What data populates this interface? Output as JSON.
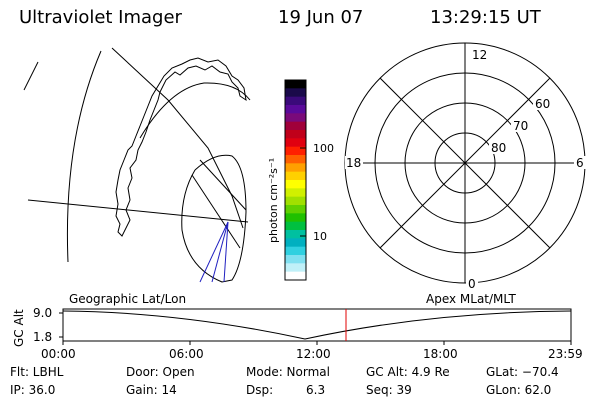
{
  "header": {
    "title": "Ultraviolet Imager",
    "date": "19 Jun 07",
    "time": "13:29:15 UT"
  },
  "colorbar": {
    "unit": "photon cm⁻²s⁻¹",
    "tick_labels": [
      "100",
      "10"
    ],
    "colors": [
      "#000000",
      "#1a0a4a",
      "#3a0a7a",
      "#5a0a9a",
      "#7a0a7a",
      "#a0003a",
      "#c0001a",
      "#e00010",
      "#ff2000",
      "#ff6000",
      "#ffa000",
      "#ffd000",
      "#ffff00",
      "#d0f000",
      "#a0e000",
      "#60d000",
      "#20c000",
      "#00c040",
      "#00c0a0",
      "#00b0c0",
      "#30d0e0",
      "#80e0f0",
      "#c0f0f8",
      "#ffffff"
    ]
  },
  "polar": {
    "mlt_labels": {
      "top": "12",
      "left": "18",
      "right": "6",
      "bottom": "0"
    },
    "lat_labels": [
      "60",
      "70",
      "80"
    ]
  },
  "timeline": {
    "ylabel": "GC Alt",
    "left_label": "Geographic Lat/Lon",
    "right_label": "Apex MLat/MLT",
    "y_ticks": [
      "9.0",
      "1.8"
    ],
    "x_ticks": [
      "00:00",
      "06:00",
      "12:00",
      "18:00",
      "23:59"
    ],
    "current_marker_color": "#e00000"
  },
  "info": {
    "flt": "Flt: LBHL",
    "door": "Door: Open",
    "mode": "Mode: Normal",
    "gc_alt": "GC Alt: 4.9 Re",
    "glat": "GLat: −70.4",
    "ip": "IP: 36.0",
    "gain": "Gain: 14",
    "dsp": "Dsp:",
    "dsp_value": "6.3",
    "seq": "Seq: 39",
    "glon": "GLon: 62.0"
  }
}
